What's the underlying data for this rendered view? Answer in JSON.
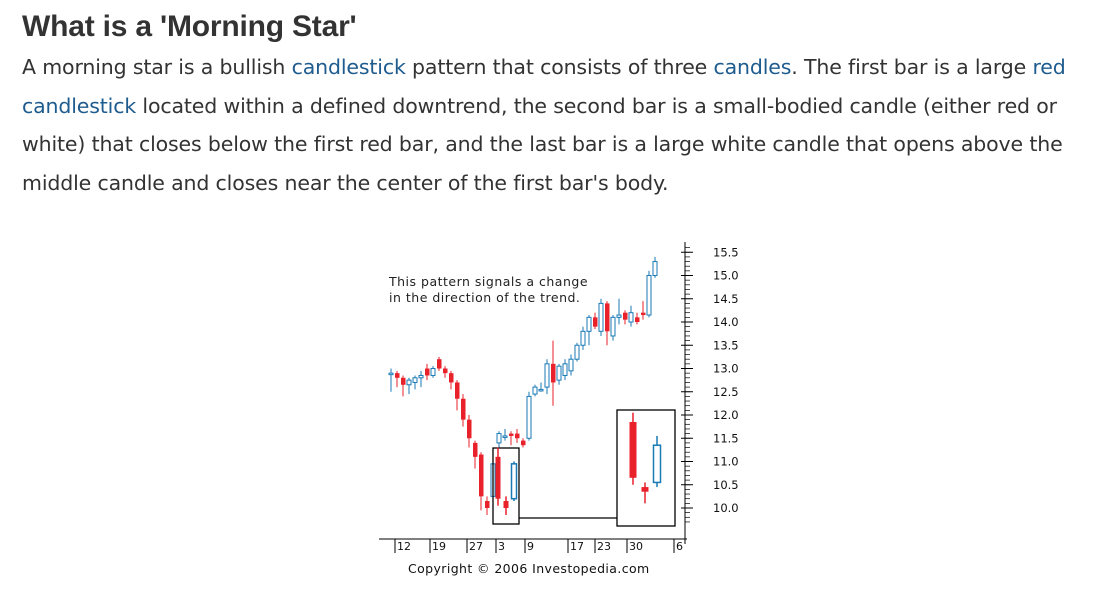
{
  "article": {
    "title": "What is a 'Morning Star'",
    "p": {
      "s1": "A morning star is a bullish ",
      "l1": "candlestick",
      "s2": " pattern that consists of three ",
      "l2": "candles",
      "s3": ". The first bar is a large ",
      "l3": "red candlestick",
      "s4": " located within a defined downtrend, the second bar is a small-bodied candle (either red or white) that closes below the first red bar, and the last bar is a large white candle that opens above the middle candle and closes near the center of the first bar's body."
    }
  },
  "chart_data": {
    "type": "candlestick",
    "annotation": [
      "This pattern signals a change",
      "in the direction of the trend."
    ],
    "copyright": "Copyright © 2006 Investopedia.com",
    "ylim": [
      9.7,
      15.7
    ],
    "yticks": [
      "15.5",
      "15.0",
      "14.5",
      "14.0",
      "13.5",
      "13.0",
      "12.5",
      "12.0",
      "11.5",
      "11.0",
      "10.5",
      "10.0"
    ],
    "xticks": [
      "12",
      "19",
      "27",
      "3",
      "9",
      "17",
      "23",
      "30",
      "6"
    ],
    "colors": {
      "up": "#1a7ab6",
      "down": "#e8212a",
      "frame": "#000000"
    },
    "candles": [
      {
        "o": 12.9,
        "h": 13.0,
        "l": 12.5,
        "c": 12.9
      },
      {
        "o": 12.9,
        "h": 12.95,
        "l": 12.6,
        "c": 12.8
      },
      {
        "o": 12.8,
        "h": 12.85,
        "l": 12.4,
        "c": 12.65
      },
      {
        "o": 12.65,
        "h": 12.8,
        "l": 12.45,
        "c": 12.75
      },
      {
        "o": 12.7,
        "h": 12.85,
        "l": 12.55,
        "c": 12.8
      },
      {
        "o": 12.8,
        "h": 12.95,
        "l": 12.6,
        "c": 12.85
      },
      {
        "o": 13.0,
        "h": 13.1,
        "l": 12.75,
        "c": 12.85
      },
      {
        "o": 12.85,
        "h": 13.05,
        "l": 12.8,
        "c": 13.0
      },
      {
        "o": 13.2,
        "h": 13.25,
        "l": 12.95,
        "c": 13.0
      },
      {
        "o": 13.0,
        "h": 13.05,
        "l": 12.8,
        "c": 12.9
      },
      {
        "o": 12.9,
        "h": 12.95,
        "l": 12.55,
        "c": 12.7
      },
      {
        "o": 12.7,
        "h": 12.75,
        "l": 12.1,
        "c": 12.35
      },
      {
        "o": 12.35,
        "h": 12.45,
        "l": 11.75,
        "c": 11.9
      },
      {
        "o": 11.9,
        "h": 12.0,
        "l": 11.3,
        "c": 11.5
      },
      {
        "o": 11.4,
        "h": 11.45,
        "l": 10.85,
        "c": 11.1
      },
      {
        "o": 11.15,
        "h": 11.2,
        "l": 9.95,
        "c": 10.25
      },
      {
        "o": 10.15,
        "h": 10.25,
        "l": 9.85,
        "c": 10.0
      },
      {
        "o": 10.25,
        "h": 11.1,
        "l": 10.15,
        "c": 10.95
      },
      {
        "o": 11.4,
        "h": 11.65,
        "l": 11.3,
        "c": 11.6
      },
      {
        "o": 11.55,
        "h": 11.7,
        "l": 11.45,
        "c": 11.55
      },
      {
        "o": 11.6,
        "h": 11.65,
        "l": 11.35,
        "c": 11.55
      },
      {
        "o": 11.6,
        "h": 11.7,
        "l": 11.4,
        "c": 11.5
      },
      {
        "o": 11.45,
        "h": 11.5,
        "l": 11.3,
        "c": 11.35
      },
      {
        "o": 11.5,
        "h": 12.5,
        "l": 11.45,
        "c": 12.4
      },
      {
        "o": 12.45,
        "h": 12.65,
        "l": 12.4,
        "c": 12.6
      },
      {
        "o": 12.55,
        "h": 12.7,
        "l": 12.5,
        "c": 12.55
      },
      {
        "o": 12.6,
        "h": 13.2,
        "l": 12.45,
        "c": 13.1
      },
      {
        "o": 13.1,
        "h": 13.6,
        "l": 12.2,
        "c": 12.7
      },
      {
        "o": 12.75,
        "h": 13.1,
        "l": 12.65,
        "c": 13.05
      },
      {
        "o": 12.85,
        "h": 13.2,
        "l": 12.75,
        "c": 13.1
      },
      {
        "o": 12.95,
        "h": 13.3,
        "l": 12.85,
        "c": 13.2
      },
      {
        "o": 13.2,
        "h": 13.55,
        "l": 13.15,
        "c": 13.5
      },
      {
        "o": 13.5,
        "h": 13.9,
        "l": 13.4,
        "c": 13.8
      },
      {
        "o": 13.8,
        "h": 14.15,
        "l": 13.5,
        "c": 14.1
      },
      {
        "o": 14.1,
        "h": 14.2,
        "l": 13.85,
        "c": 13.9
      },
      {
        "o": 13.8,
        "h": 14.5,
        "l": 13.7,
        "c": 14.4
      },
      {
        "o": 14.4,
        "h": 14.45,
        "l": 13.5,
        "c": 13.8
      },
      {
        "o": 13.7,
        "h": 14.15,
        "l": 13.6,
        "c": 14.1
      },
      {
        "o": 14.1,
        "h": 14.5,
        "l": 13.95,
        "c": 14.15
      },
      {
        "o": 14.2,
        "h": 14.25,
        "l": 13.95,
        "c": 14.05
      },
      {
        "o": 14.0,
        "h": 14.35,
        "l": 13.9,
        "c": 14.2
      },
      {
        "o": 14.1,
        "h": 14.2,
        "l": 13.95,
        "c": 14.0
      },
      {
        "o": 14.2,
        "h": 14.45,
        "l": 14.05,
        "c": 14.15
      },
      {
        "o": 14.15,
        "h": 15.1,
        "l": 14.1,
        "c": 15.0
      },
      {
        "o": 15.0,
        "h": 15.4,
        "l": 14.95,
        "c": 15.3
      }
    ],
    "pattern": {
      "label": "morning star",
      "left_group": [
        {
          "o": 11.1,
          "h": 11.3,
          "l": 10.05,
          "c": 10.2
        },
        {
          "o": 10.15,
          "h": 10.25,
          "l": 9.85,
          "c": 10.0
        },
        {
          "o": 10.2,
          "h": 11.0,
          "l": 10.15,
          "c": 10.95
        }
      ],
      "right_group": [
        {
          "o": 11.85,
          "h": 12.05,
          "l": 10.5,
          "c": 10.65
        },
        {
          "o": 10.45,
          "h": 10.55,
          "l": 10.1,
          "c": 10.35
        },
        {
          "o": 10.55,
          "h": 11.55,
          "l": 10.45,
          "c": 11.35
        }
      ]
    }
  }
}
